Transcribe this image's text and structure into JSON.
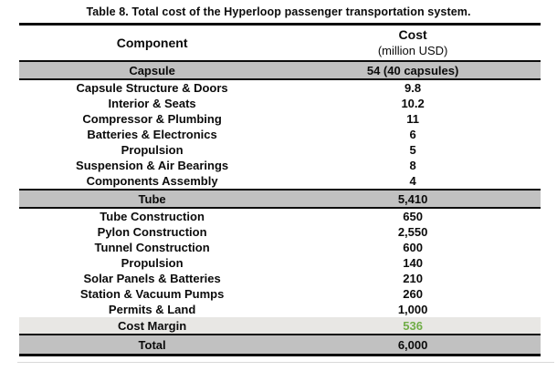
{
  "title": "Table 8. Total cost of the Hyperloop passenger transportation system.",
  "table": {
    "columns": {
      "component": "Component",
      "cost_line1": "Cost",
      "cost_line2": "(million USD)"
    },
    "rows": [
      {
        "component": "Capsule",
        "cost": "54 (40 capsules)",
        "style": "section"
      },
      {
        "component": "Capsule Structure & Doors",
        "cost": "9.8",
        "style": "item"
      },
      {
        "component": "Interior & Seats",
        "cost": "10.2",
        "style": "item"
      },
      {
        "component": "Compressor & Plumbing",
        "cost": "11",
        "style": "item"
      },
      {
        "component": "Batteries & Electronics",
        "cost": "6",
        "style": "item"
      },
      {
        "component": "Propulsion",
        "cost": "5",
        "style": "item"
      },
      {
        "component": "Suspension & Air Bearings",
        "cost": "8",
        "style": "item"
      },
      {
        "component": "Components Assembly",
        "cost": "4",
        "style": "item"
      },
      {
        "component": "Tube",
        "cost": "5,410",
        "style": "section"
      },
      {
        "component": "Tube Construction",
        "cost": "650",
        "style": "item"
      },
      {
        "component": "Pylon Construction",
        "cost": "2,550",
        "style": "item"
      },
      {
        "component": "Tunnel Construction",
        "cost": "600",
        "style": "item"
      },
      {
        "component": "Propulsion",
        "cost": "140",
        "style": "item"
      },
      {
        "component": "Solar Panels & Batteries",
        "cost": "210",
        "style": "item"
      },
      {
        "component": "Station & Vacuum Pumps",
        "cost": "260",
        "style": "item"
      },
      {
        "component": "Permits & Land",
        "cost": "1,000",
        "style": "item"
      },
      {
        "component": "Cost Margin",
        "cost": "536",
        "style": "margin",
        "cost_color": "margin_value_green"
      },
      {
        "component": "Total",
        "cost": "6,000",
        "style": "total"
      }
    ]
  },
  "colors": {
    "section_row_bg": "#c1c1c1",
    "margin_row_bg": "#e8e7e4",
    "total_row_bg": "#c1c1c1",
    "margin_value_green": "#70ad47",
    "border_black": "#0c0c0c"
  }
}
